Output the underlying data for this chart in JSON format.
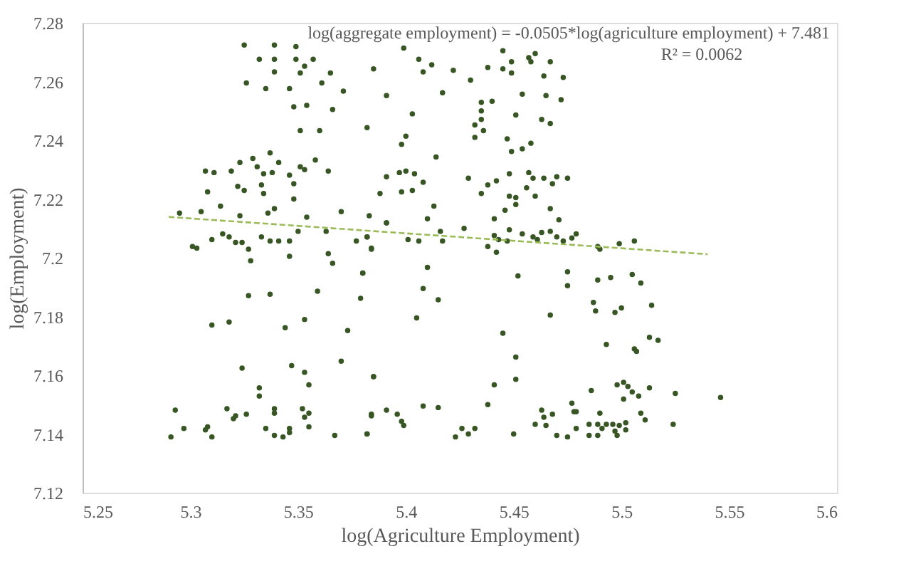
{
  "chart_data": {
    "type": "scatter",
    "xlabel": "log(Agriculture Employment)",
    "ylabel": "log(Employment)",
    "annotations": [
      "log(aggregate employment) = -0.0505*log(agriculture employment) + 7.481",
      "R² = 0.0062"
    ],
    "xlim": [
      5.25,
      5.6
    ],
    "xticks": [
      5.25,
      5.3,
      5.35,
      5.4,
      5.45,
      5.5,
      5.55,
      5.6
    ],
    "ylim": [
      7.12,
      7.28
    ],
    "yticks": [
      7.12,
      7.14,
      7.16,
      7.18,
      7.2,
      7.22,
      7.24,
      7.26,
      7.28
    ],
    "grid": false,
    "marker": "circle",
    "series": [
      {
        "color": "#375623",
        "x": [
          5.325,
          5.339,
          5.349,
          5.332,
          5.339,
          5.349,
          5.357,
          5.353,
          5.339,
          5.351,
          5.326,
          5.335,
          5.346,
          5.361,
          5.365,
          5.371,
          5.348,
          5.354,
          5.366,
          5.351,
          5.36,
          5.295,
          5.305,
          5.307,
          5.311,
          5.308,
          5.314,
          5.319,
          5.323,
          5.322,
          5.325,
          5.323,
          5.329,
          5.331,
          5.334,
          5.333,
          5.334,
          5.337,
          5.338,
          5.341,
          5.336,
          5.339,
          5.346,
          5.348,
          5.348,
          5.351,
          5.353,
          5.358,
          5.364,
          5.354,
          5.37,
          5.301,
          5.303,
          5.31,
          5.315,
          5.318,
          5.321,
          5.324,
          5.327,
          5.328,
          5.333,
          5.337,
          5.341,
          5.346,
          5.346,
          5.35,
          5.363,
          5.364,
          5.366,
          5.377,
          5.38,
          5.382,
          5.384,
          5.327,
          5.337,
          5.359,
          5.379,
          5.31,
          5.318,
          5.344,
          5.353,
          5.373,
          5.324,
          5.347,
          5.353,
          5.355,
          5.37,
          5.385,
          5.332,
          5.332,
          5.293,
          5.291,
          5.297,
          5.307,
          5.308,
          5.31,
          5.317,
          5.32,
          5.321,
          5.326,
          5.335,
          5.339,
          5.339,
          5.339,
          5.343,
          5.346,
          5.346,
          5.352,
          5.353,
          5.355,
          5.355,
          5.367,
          5.382,
          5.384,
          5.399,
          5.385,
          5.406,
          5.408,
          5.412,
          5.422,
          5.43,
          5.417,
          5.391,
          5.403,
          5.382,
          5.4,
          5.398,
          5.414,
          5.445,
          5.438,
          5.445,
          5.449,
          5.449,
          5.457,
          5.458,
          5.46,
          5.467,
          5.464,
          5.473,
          5.435,
          5.44,
          5.454,
          5.465,
          5.472,
          5.435,
          5.435,
          5.432,
          5.436,
          5.432,
          5.451,
          5.463,
          5.467,
          5.447,
          5.454,
          5.458,
          5.449,
          5.391,
          5.397,
          5.4,
          5.404,
          5.408,
          5.429,
          5.438,
          5.442,
          5.448,
          5.457,
          5.459,
          5.464,
          5.47,
          5.475,
          5.468,
          5.456,
          5.435,
          5.448,
          5.451,
          5.46,
          5.388,
          5.398,
          5.403,
          5.413,
          5.383,
          5.391,
          5.41,
          5.441,
          5.446,
          5.451,
          5.467,
          5.471,
          5.382,
          5.384,
          5.391,
          5.401,
          5.406,
          5.416,
          5.417,
          5.427,
          5.441,
          5.443,
          5.447,
          5.448,
          5.454,
          5.459,
          5.461,
          5.463,
          5.467,
          5.47,
          5.473,
          5.477,
          5.479,
          5.438,
          5.442,
          5.489,
          5.49,
          5.499,
          5.506,
          5.38,
          5.41,
          5.452,
          5.475,
          5.475,
          5.489,
          5.495,
          5.505,
          5.509,
          5.408,
          5.415,
          5.487,
          5.488,
          5.497,
          5.5,
          5.514,
          5.405,
          5.467,
          5.445,
          5.493,
          5.506,
          5.507,
          5.513,
          5.517,
          5.451,
          5.451,
          5.441,
          5.385,
          5.486,
          5.498,
          5.501,
          5.503,
          5.505,
          5.508,
          5.513,
          5.525,
          5.501,
          5.384,
          5.391,
          5.396,
          5.398,
          5.399,
          5.408,
          5.415,
          5.438,
          5.382,
          5.423,
          5.426,
          5.429,
          5.432,
          5.45,
          5.46,
          5.463,
          5.464,
          5.465,
          5.468,
          5.47,
          5.475,
          5.477,
          5.478,
          5.479,
          5.479,
          5.485,
          5.485,
          5.489,
          5.489,
          5.491,
          5.493,
          5.49,
          5.496,
          5.497,
          5.498,
          5.499,
          5.502,
          5.502,
          5.509,
          5.511,
          5.524,
          5.546
        ],
        "values": [
          7.2724,
          7.2724,
          7.2719,
          7.2676,
          7.2676,
          7.2676,
          7.2676,
          7.2652,
          7.2633,
          7.2629,
          7.2595,
          7.2576,
          7.2576,
          7.2595,
          7.2629,
          7.2567,
          7.2514,
          7.2519,
          7.2505,
          7.2433,
          7.2433,
          7.2152,
          7.2157,
          7.2295,
          7.229,
          7.2224,
          7.2176,
          7.2295,
          7.2324,
          7.2243,
          7.2229,
          7.2143,
          7.2338,
          7.231,
          7.2286,
          7.2248,
          7.2219,
          7.2357,
          7.229,
          7.2324,
          7.2152,
          7.2167,
          7.2281,
          7.2252,
          7.22,
          7.231,
          7.23,
          7.2333,
          7.2295,
          7.2138,
          7.2157,
          7.2038,
          7.2033,
          7.2062,
          7.2081,
          7.2071,
          7.2052,
          7.2052,
          7.2029,
          7.199,
          7.2071,
          7.2057,
          7.2057,
          7.2057,
          7.2005,
          7.209,
          7.209,
          7.2014,
          7.1981,
          7.2057,
          7.1948,
          7.2071,
          7.2033,
          7.1871,
          7.1876,
          7.1886,
          7.1862,
          7.1771,
          7.1781,
          7.1762,
          7.179,
          7.1752,
          7.1624,
          7.1633,
          7.161,
          7.1567,
          7.1648,
          7.1595,
          7.1557,
          7.1529,
          7.1481,
          7.139,
          7.1419,
          7.1414,
          7.1424,
          7.139,
          7.1486,
          7.1452,
          7.1462,
          7.1467,
          7.1419,
          7.1486,
          7.1471,
          7.1395,
          7.139,
          7.1419,
          7.1405,
          7.1486,
          7.1457,
          7.1471,
          7.1424,
          7.1395,
          7.14,
          7.1467,
          7.2714,
          7.2643,
          7.2676,
          7.2633,
          7.2657,
          7.2638,
          7.2605,
          7.2562,
          7.2552,
          7.249,
          7.2443,
          7.2414,
          7.2386,
          7.2343,
          7.2705,
          7.2648,
          7.2643,
          7.2667,
          7.2629,
          7.2681,
          7.2667,
          7.2695,
          7.2667,
          7.2619,
          7.2614,
          7.2529,
          7.2533,
          7.2557,
          7.2552,
          7.2538,
          7.25,
          7.2471,
          7.2452,
          7.2433,
          7.241,
          7.2486,
          7.2471,
          7.2457,
          7.2405,
          7.2371,
          7.239,
          7.2362,
          7.2276,
          7.229,
          7.2295,
          7.2286,
          7.2257,
          7.2271,
          7.2248,
          7.2262,
          7.2286,
          7.229,
          7.2271,
          7.2271,
          7.2276,
          7.2271,
          7.2252,
          7.2238,
          7.2219,
          7.221,
          7.2205,
          7.221,
          7.2219,
          7.2224,
          7.2229,
          7.2176,
          7.2143,
          7.2119,
          7.2133,
          7.2133,
          7.2162,
          7.2181,
          7.2167,
          7.2129,
          7.2071,
          7.2029,
          7.2119,
          7.2062,
          7.2057,
          7.209,
          7.2057,
          7.21,
          7.2076,
          7.2062,
          7.2057,
          7.2095,
          7.2081,
          7.2071,
          7.2062,
          7.2086,
          7.209,
          7.2071,
          7.2057,
          7.2067,
          7.2081,
          7.2038,
          7.2019,
          7.2038,
          7.2029,
          7.2048,
          7.2057,
          7.1948,
          7.1967,
          7.1938,
          7.1952,
          7.1905,
          7.1924,
          7.1933,
          7.1943,
          7.1914,
          7.1895,
          7.1857,
          7.1848,
          7.1819,
          7.1814,
          7.1829,
          7.1838,
          7.1795,
          7.1805,
          7.1743,
          7.1705,
          7.169,
          7.1681,
          7.1729,
          7.1719,
          7.1662,
          7.1586,
          7.1567,
          7.1595,
          7.1548,
          7.1567,
          7.1576,
          7.1562,
          7.1543,
          7.1529,
          7.1557,
          7.1538,
          7.1519,
          7.1462,
          7.1481,
          7.1467,
          7.1443,
          7.1429,
          7.1495,
          7.149,
          7.15,
          7.14,
          7.139,
          7.1419,
          7.14,
          7.1419,
          7.14,
          7.1433,
          7.1481,
          7.1457,
          7.1429,
          7.1467,
          7.1395,
          7.139,
          7.1505,
          7.1476,
          7.1476,
          7.1419,
          7.1395,
          7.1433,
          7.1433,
          7.1395,
          7.1419,
          7.1433,
          7.1471,
          7.1433,
          7.141,
          7.1395,
          7.1429,
          7.1438,
          7.1414,
          7.1471,
          7.1448,
          7.1433,
          7.1524
        ]
      },
      {
        "type": "line",
        "color": "#9bbb59",
        "line_style": "dashed",
        "marker": "none",
        "x": [
          5.29,
          5.54
        ],
        "values": [
          7.2139,
          7.2012
        ]
      }
    ]
  }
}
